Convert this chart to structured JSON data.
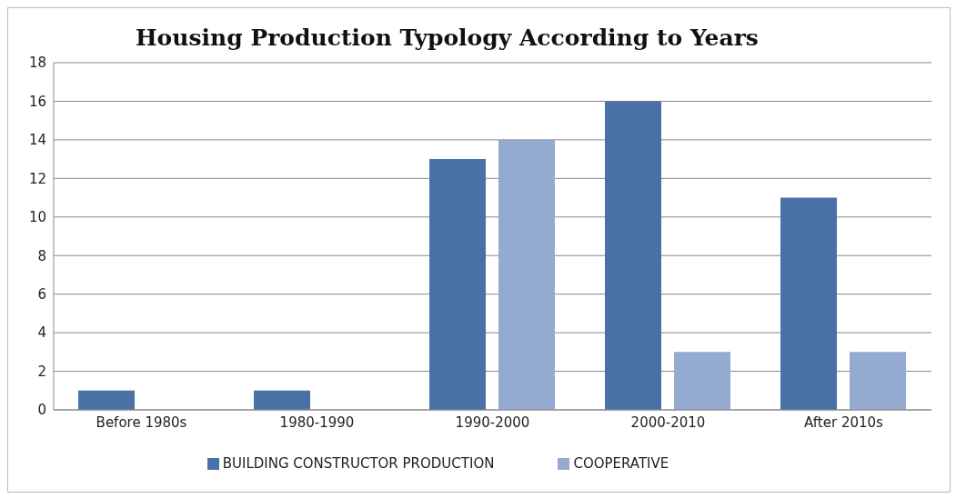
{
  "chart_data": {
    "type": "bar",
    "title": "Housing Production Typology According to Years",
    "categories": [
      "Before 1980s",
      "1980-1990",
      "1990-2000",
      "2000-2010",
      "After 2010s"
    ],
    "series": [
      {
        "name": "BUILDING CONSTRUCTOR  PRODUCTION",
        "color": "#4a71a6",
        "values": [
          1,
          1,
          13,
          16,
          11
        ]
      },
      {
        "name": "COOPERATIVE",
        "color": "#95aad0",
        "values": [
          0,
          0,
          14,
          3,
          3
        ]
      }
    ],
    "ylim": [
      0,
      18
    ],
    "yticks": [
      0,
      2,
      4,
      6,
      8,
      10,
      12,
      14,
      16,
      18
    ],
    "grid": "y",
    "legend": "bottom"
  }
}
